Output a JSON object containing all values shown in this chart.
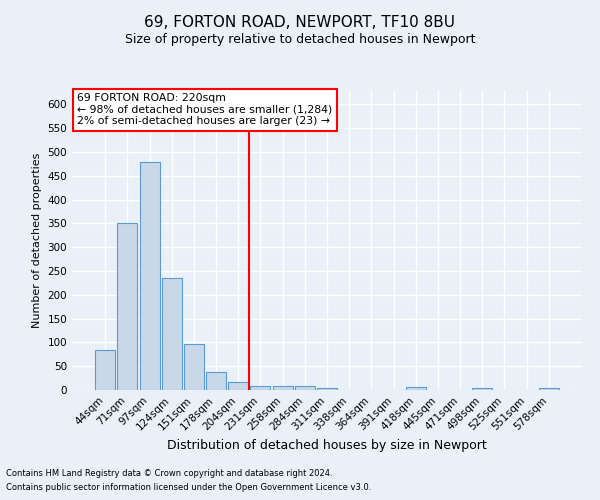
{
  "title1": "69, FORTON ROAD, NEWPORT, TF10 8BU",
  "title2": "Size of property relative to detached houses in Newport",
  "xlabel": "Distribution of detached houses by size in Newport",
  "ylabel": "Number of detached properties",
  "bar_labels": [
    "44sqm",
    "71sqm",
    "97sqm",
    "124sqm",
    "151sqm",
    "178sqm",
    "204sqm",
    "231sqm",
    "258sqm",
    "284sqm",
    "311sqm",
    "338sqm",
    "364sqm",
    "391sqm",
    "418sqm",
    "445sqm",
    "471sqm",
    "498sqm",
    "525sqm",
    "551sqm",
    "578sqm"
  ],
  "bar_values": [
    83,
    350,
    478,
    235,
    96,
    37,
    17,
    8,
    9,
    8,
    5,
    0,
    0,
    0,
    6,
    0,
    0,
    5,
    0,
    0,
    5
  ],
  "bar_color": "#c8d8e8",
  "bar_edge_color": "#5b9bd5",
  "vline_color": "red",
  "vline_index": 6.5,
  "annotation_title": "69 FORTON ROAD: 220sqm",
  "annotation_line1": "← 98% of detached houses are smaller (1,284)",
  "annotation_line2": "2% of semi-detached houses are larger (23) →",
  "annotation_box_color": "white",
  "annotation_box_edge": "red",
  "footnote1": "Contains HM Land Registry data © Crown copyright and database right 2024.",
  "footnote2": "Contains public sector information licensed under the Open Government Licence v3.0.",
  "background_color": "#eaf0f8",
  "ylim": [
    0,
    630
  ],
  "yticks": [
    0,
    50,
    100,
    150,
    200,
    250,
    300,
    350,
    400,
    450,
    500,
    550,
    600
  ],
  "grid_color": "white",
  "title1_fontsize": 11,
  "title2_fontsize": 9,
  "ylabel_fontsize": 8,
  "xlabel_fontsize": 9,
  "tick_fontsize": 7.5
}
